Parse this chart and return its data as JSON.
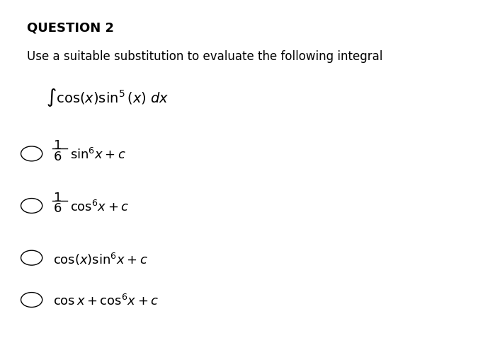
{
  "title": "QUESTION 2",
  "subtitle": "Use a suitable substitution to evaluate the following integral",
  "integral": "$\\int \\cos(x)\\sin^5(x)\\ dx$",
  "options": [
    "$\\dfrac{1}{6}\\sin^6\\!x + c$",
    "$\\dfrac{1}{6}\\cos^6\\!x + c$",
    "$\\cos(x)\\sin^6\\!x + c$",
    "$\\cos x + \\cos^6\\!x + c$"
  ],
  "bg_color": "#ffffff",
  "text_color": "#000000",
  "title_fontsize": 13,
  "subtitle_fontsize": 12,
  "option_fontsize": 13,
  "integral_fontsize": 14
}
